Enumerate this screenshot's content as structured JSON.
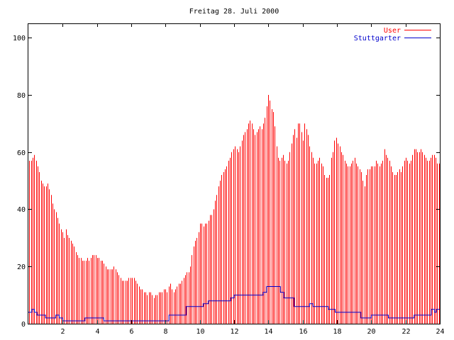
{
  "chart_data": {
    "type": "bar",
    "title": "Freitag 28. Juli 2000",
    "xlabel": "",
    "ylabel": "",
    "xlim": [
      0,
      24
    ],
    "ylim": [
      0,
      105
    ],
    "x_ticks": [
      "2",
      "4",
      "6",
      "8",
      "10",
      "12",
      "14",
      "16",
      "18",
      "20",
      "22",
      "24"
    ],
    "y_ticks": [
      "0",
      "20",
      "40",
      "60",
      "80",
      "100"
    ],
    "grid": false,
    "legend_position": "top-right",
    "series": [
      {
        "name": "User",
        "render": "impulses",
        "color": "#ff0000",
        "values": [
          57,
          57,
          58,
          59,
          57,
          55,
          53,
          50,
          49,
          48,
          48,
          49,
          47,
          45,
          42,
          40,
          39,
          37,
          35,
          33,
          32,
          30,
          33,
          31,
          30,
          29,
          28,
          27,
          25,
          24,
          23,
          23,
          22,
          22,
          22,
          23,
          22,
          23,
          24,
          24,
          24,
          23,
          23,
          22,
          22,
          21,
          20,
          19,
          19,
          19,
          19,
          20,
          19,
          18,
          17,
          16,
          15,
          15,
          15,
          15,
          16,
          16,
          16,
          16,
          15,
          14,
          13,
          12,
          12,
          11,
          11,
          10,
          11,
          11,
          10,
          9,
          10,
          10,
          11,
          11,
          11,
          12,
          12,
          11,
          13,
          14,
          12,
          11,
          12,
          13,
          14,
          14,
          15,
          16,
          17,
          18,
          18,
          20,
          24,
          27,
          29,
          30,
          32,
          35,
          35,
          34,
          35,
          35,
          36,
          38,
          38,
          40,
          43,
          45,
          48,
          50,
          52,
          53,
          54,
          55,
          57,
          58,
          60,
          61,
          62,
          61,
          60,
          62,
          64,
          66,
          67,
          68,
          70,
          71,
          70,
          68,
          66,
          67,
          68,
          69,
          68,
          70,
          72,
          76,
          80,
          78,
          75,
          74,
          69,
          62,
          58,
          57,
          58,
          59,
          57,
          56,
          57,
          60,
          63,
          66,
          68,
          65,
          70,
          70,
          67,
          64,
          70,
          68,
          66,
          62,
          60,
          58,
          56,
          56,
          57,
          58,
          56,
          55,
          52,
          51,
          51,
          52,
          58,
          60,
          64,
          65,
          63,
          62,
          60,
          59,
          57,
          56,
          55,
          55,
          56,
          57,
          58,
          56,
          55,
          54,
          53,
          50,
          48,
          52,
          54,
          54,
          55,
          55,
          55,
          57,
          56,
          55,
          56,
          57,
          61,
          59,
          58,
          57,
          55,
          53,
          52,
          52,
          53,
          54,
          53,
          55,
          57,
          58,
          57,
          56,
          57,
          59,
          61,
          61,
          60,
          60,
          61,
          60,
          59,
          58,
          57,
          57,
          58,
          59,
          59,
          58,
          56,
          56
        ]
      },
      {
        "name": "Stuttgarter",
        "render": "steps",
        "color": "#0000cc",
        "x": [
          0,
          0.2,
          0.35,
          0.5,
          1.0,
          1.6,
          1.8,
          2.0,
          3.3,
          4.2,
          4.4,
          4.8,
          6.0,
          7.5,
          8.2,
          9.2,
          10.2,
          10.5,
          10.9,
          11.7,
          11.8,
          12.0,
          13.5,
          13.7,
          13.9,
          14.7,
          14.9,
          15.5,
          15.7,
          16.4,
          16.6,
          17.5,
          17.9,
          18.5,
          19.4,
          20.0,
          21.0,
          22.5,
          23.5,
          23.7,
          23.8,
          24.0
        ],
        "values": [
          4,
          5,
          4,
          3,
          2,
          3,
          2,
          1,
          2,
          2,
          1,
          1,
          1,
          1,
          3,
          6,
          7,
          8,
          8,
          8,
          9,
          10,
          10,
          11,
          13,
          11,
          9,
          6,
          6,
          7,
          6,
          5,
          4,
          4,
          2,
          3,
          2,
          3,
          5,
          4,
          5,
          5
        ]
      }
    ]
  }
}
